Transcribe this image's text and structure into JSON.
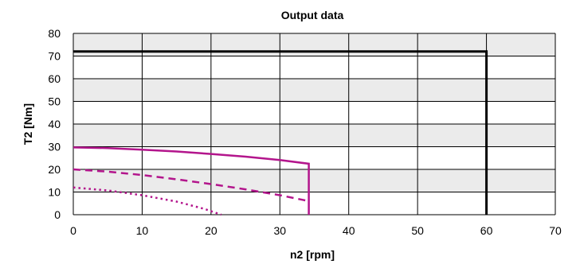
{
  "chart_data": {
    "type": "line",
    "title": "Output data",
    "xlabel": "n2 [rpm]",
    "ylabel": "T2 [Nm]",
    "xlim": [
      0,
      70
    ],
    "ylim": [
      0,
      80
    ],
    "x_ticks": [
      "0",
      "10",
      "20",
      "30",
      "40",
      "50",
      "60",
      "70"
    ],
    "y_ticks": [
      "0",
      "10",
      "20",
      "30",
      "40",
      "50",
      "60",
      "70",
      "80"
    ],
    "grid": true,
    "band_colors": [
      "#ebebeb",
      "#ffffff"
    ],
    "series": [
      {
        "style": "solid",
        "color": "#000000",
        "points": [
          [
            0,
            72
          ],
          [
            60,
            72
          ],
          [
            60,
            0
          ]
        ]
      },
      {
        "style": "solid",
        "color": "#b3158c",
        "points": [
          [
            0,
            29.7
          ],
          [
            5,
            29.4
          ],
          [
            10,
            28.7
          ],
          [
            15,
            27.9
          ],
          [
            20,
            26.8
          ],
          [
            25,
            25.6
          ],
          [
            30,
            24.1
          ],
          [
            34.2,
            22.5
          ],
          [
            34.2,
            0
          ]
        ]
      },
      {
        "style": "dashed",
        "color": "#b3158c",
        "points": [
          [
            0,
            20
          ],
          [
            5,
            19
          ],
          [
            10,
            17.5
          ],
          [
            15,
            15.6
          ],
          [
            20,
            13.5
          ],
          [
            25,
            11.2
          ],
          [
            30,
            8.6
          ],
          [
            34.2,
            6
          ]
        ]
      },
      {
        "style": "dotted",
        "color": "#b3158c",
        "points": [
          [
            0,
            12
          ],
          [
            5,
            10.7
          ],
          [
            10,
            8.6
          ],
          [
            15,
            5.8
          ],
          [
            19,
            2.6
          ],
          [
            21.5,
            0
          ]
        ]
      }
    ]
  }
}
